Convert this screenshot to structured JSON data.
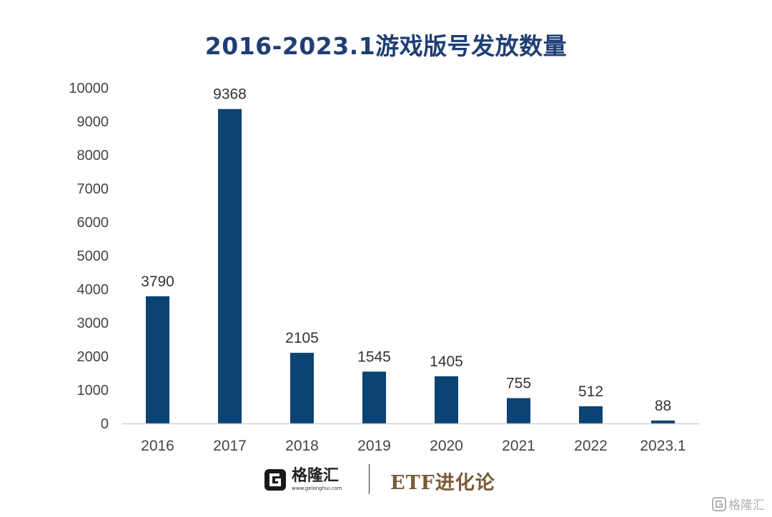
{
  "chart_data": {
    "type": "bar",
    "title": "2016-2023.1游戏版号发放数量",
    "categories": [
      "2016",
      "2017",
      "2018",
      "2019",
      "2020",
      "2021",
      "2022",
      "2023.1"
    ],
    "values": [
      3790,
      9368,
      2105,
      1545,
      1405,
      755,
      512,
      88
    ],
    "data_labels": [
      "3790",
      "9368",
      "2105",
      "1545",
      "1405",
      "755",
      "512",
      "88"
    ],
    "yticks": [
      "0",
      "1000",
      "2000",
      "3000",
      "4000",
      "5000",
      "6000",
      "7000",
      "8000",
      "9000",
      "10000"
    ],
    "ylim": [
      0,
      10000
    ],
    "xlabel": "",
    "ylabel": "",
    "grid": false,
    "legend": "none",
    "bar_color": "#0b4373"
  },
  "footer": {
    "brand_name": "格隆汇",
    "brand_url": "www.gelonghui.com",
    "partner": "ETF进化论",
    "watermark": "格隆汇"
  }
}
